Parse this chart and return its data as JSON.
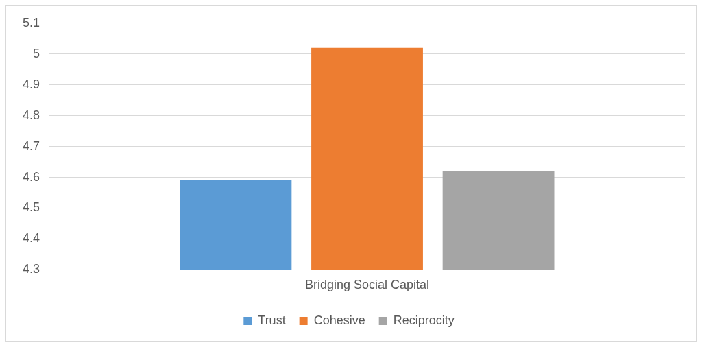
{
  "chart_data": {
    "type": "bar",
    "categories": [
      "Bridging Social Capital"
    ],
    "series": [
      {
        "name": "Trust",
        "color": "#5b9bd5",
        "values": [
          4.59
        ]
      },
      {
        "name": "Cohesive",
        "color": "#ed7d31",
        "values": [
          5.02
        ]
      },
      {
        "name": "Reciprocity",
        "color": "#a5a5a5",
        "values": [
          4.62
        ]
      }
    ],
    "ylim": [
      4.3,
      5.1
    ],
    "yticks": [
      4.3,
      4.4,
      4.5,
      4.6,
      4.7,
      4.8,
      4.9,
      5,
      5.1
    ],
    "grid": "y",
    "legend": "bottom"
  }
}
